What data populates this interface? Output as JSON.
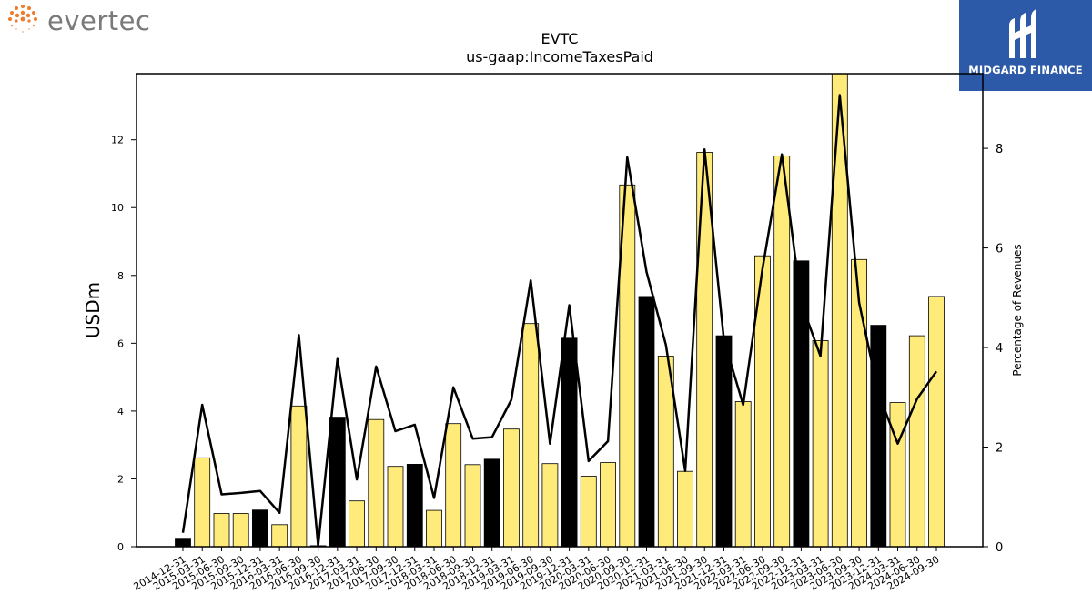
{
  "brand": {
    "name": "evertec",
    "icon": "dotted-sun-logo-icon"
  },
  "badge": {
    "name": "MIDGARD FINANCE",
    "icon": "midgard-logo-icon"
  },
  "colors": {
    "bar": "#FFEB7A",
    "bar_highlight": "#000000",
    "line": "#000000",
    "logo_orange": "#ee7c2c",
    "badge_bg": "#2c5aa8"
  },
  "chart_data": {
    "type": "bar",
    "title": "EVTC",
    "subtitle": "us-gaap:IncomeTaxesPaid",
    "ylabel": "USDm",
    "y2label": "Percentage of Revenues",
    "ylim": [
      0,
      13.95
    ],
    "y2lim": [
      0,
      9.5
    ],
    "yticks": [
      0,
      2,
      4,
      6,
      8,
      10,
      12
    ],
    "y2ticks": [
      0,
      2,
      4,
      6,
      8
    ],
    "categories": [
      "2014-12-31",
      "2015-03-31",
      "2015-06-30",
      "2015-09-30",
      "2015-12-31",
      "2016-03-31",
      "2016-06-30",
      "2016-09-30",
      "2016-12-31",
      "2017-03-31",
      "2017-06-30",
      "2017-09-30",
      "2017-12-31",
      "2018-03-31",
      "2018-06-30",
      "2018-09-30",
      "2018-12-31",
      "2019-03-31",
      "2019-06-30",
      "2019-09-30",
      "2019-12-31",
      "2020-03-31",
      "2020-06-30",
      "2020-09-30",
      "2020-12-31",
      "2021-03-31",
      "2021-06-30",
      "2021-09-30",
      "2021-12-31",
      "2022-03-31",
      "2022-06-30",
      "2022-09-30",
      "2022-12-31",
      "2023-03-31",
      "2023-06-30",
      "2023-09-30",
      "2023-12-31",
      "2024-03-31",
      "2024-06-30",
      "2024-09-30"
    ],
    "series": [
      {
        "type": "bar",
        "values": [
          0.25,
          2.62,
          0.98,
          0.98,
          1.08,
          0.65,
          4.15,
          0.03,
          3.82,
          1.35,
          3.75,
          2.37,
          2.43,
          1.07,
          3.63,
          2.42,
          2.58,
          3.47,
          6.58,
          2.45,
          6.15,
          2.08,
          2.48,
          10.67,
          7.38,
          5.62,
          2.22,
          11.63,
          6.22,
          4.28,
          8.58,
          11.52,
          8.43,
          6.08,
          13.95,
          8.47,
          6.53,
          4.25,
          6.22,
          7.38
        ],
        "highlight": [
          true,
          false,
          false,
          false,
          true,
          false,
          false,
          true,
          true,
          false,
          false,
          false,
          true,
          false,
          false,
          false,
          true,
          false,
          false,
          false,
          true,
          false,
          false,
          false,
          true,
          false,
          false,
          false,
          true,
          false,
          false,
          false,
          true,
          false,
          false,
          false,
          true,
          false,
          false,
          false
        ]
      },
      {
        "type": "line",
        "axis": "right",
        "values": [
          0.28,
          2.85,
          1.05,
          1.08,
          1.12,
          0.68,
          4.25,
          0.02,
          3.77,
          1.35,
          3.62,
          2.32,
          2.45,
          0.98,
          3.2,
          2.17,
          2.2,
          2.95,
          5.35,
          2.07,
          4.85,
          1.72,
          2.12,
          7.82,
          5.52,
          4.05,
          1.52,
          7.98,
          4.15,
          2.85,
          5.58,
          7.88,
          4.9,
          3.83,
          9.07,
          4.9,
          3.08,
          2.07,
          2.97,
          3.52
        ]
      }
    ]
  }
}
